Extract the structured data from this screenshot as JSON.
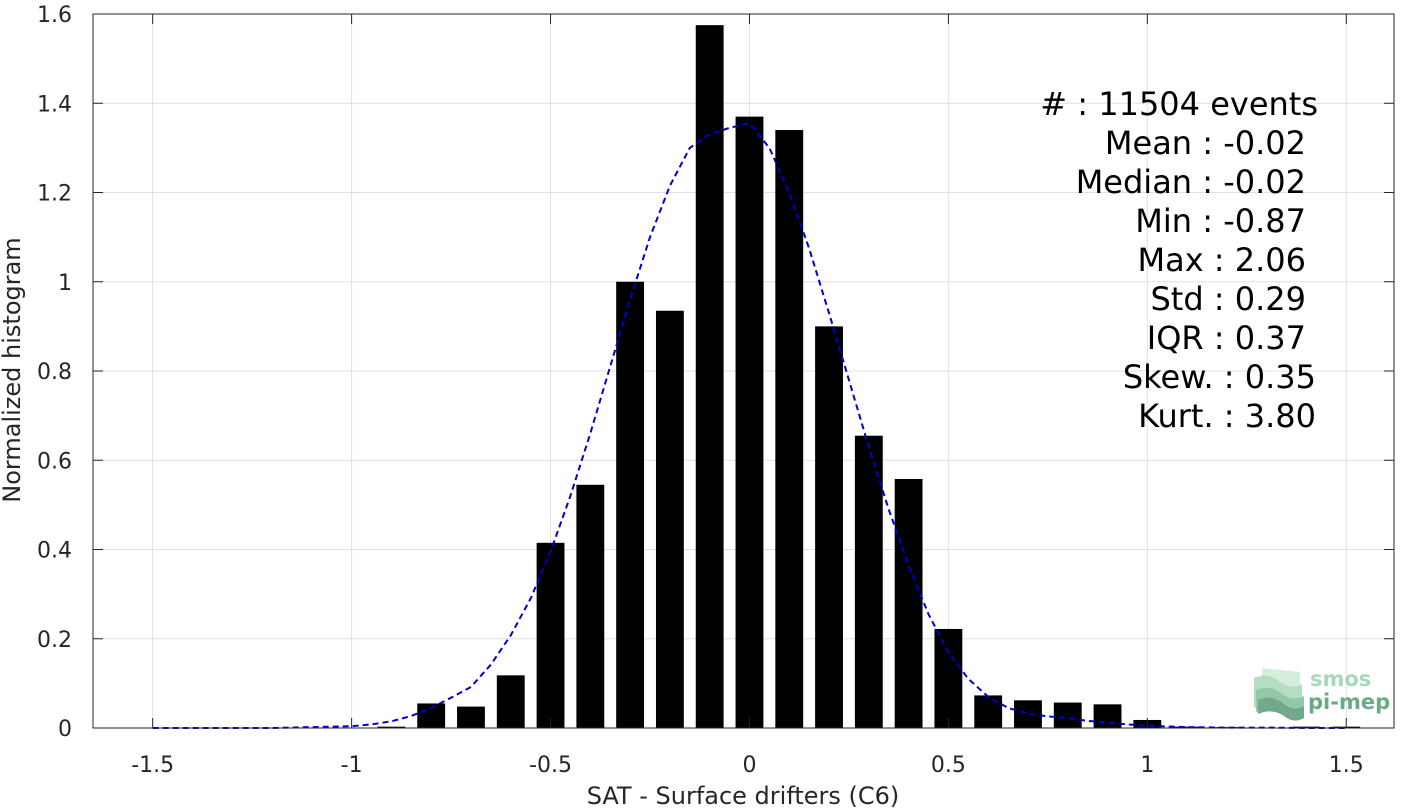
{
  "chart_data": {
    "type": "bar",
    "title": "",
    "xlabel": "SAT - Surface drifters (C6)",
    "ylabel": "Normalized histogram",
    "xlim": [
      -1.65,
      1.62
    ],
    "ylim": [
      0,
      1.6
    ],
    "grid": true,
    "x_ticks": [
      -1.5,
      -1,
      -0.5,
      0,
      0.5,
      1,
      1.5
    ],
    "x_tick_labels": [
      "-1.5",
      "-1",
      "-0.5",
      "0",
      "0.5",
      "1",
      "1.5"
    ],
    "y_ticks": [
      0,
      0.2,
      0.4,
      0.6,
      0.8,
      1,
      1.2,
      1.4,
      1.6
    ],
    "y_tick_labels": [
      "0",
      "0.2",
      "0.4",
      "0.6",
      "0.8",
      "1",
      "1.2",
      "1.4",
      "1.6"
    ],
    "bar_width": 0.07,
    "bar_color": "#000000",
    "bars": {
      "x": [
        -1.5,
        -1.4,
        -1.3,
        -1.2,
        -1.1,
        -1.0,
        -0.9,
        -0.8,
        -0.7,
        -0.6,
        -0.5,
        -0.4,
        -0.3,
        -0.2,
        -0.1,
        0.0,
        0.1,
        0.2,
        0.3,
        0.4,
        0.5,
        0.6,
        0.7,
        0.8,
        0.9,
        1.0,
        1.1,
        1.2,
        1.3,
        1.4,
        1.5
      ],
      "values": [
        0,
        0,
        0,
        0,
        0,
        0,
        0.003,
        0.055,
        0.048,
        0.118,
        0.415,
        0.545,
        1.0,
        0.935,
        1.575,
        1.37,
        1.34,
        0.9,
        0.655,
        0.558,
        0.222,
        0.073,
        0.062,
        0.057,
        0.053,
        0.018,
        0.003,
        0.002,
        0.001,
        0.003,
        0.003
      ]
    },
    "fit_curve": {
      "color": "#0000cc",
      "style": "dashed",
      "x": [
        -1.5,
        -1.4,
        -1.3,
        -1.2,
        -1.1,
        -1.0,
        -0.95,
        -0.9,
        -0.85,
        -0.8,
        -0.75,
        -0.7,
        -0.65,
        -0.6,
        -0.55,
        -0.5,
        -0.45,
        -0.4,
        -0.35,
        -0.3,
        -0.25,
        -0.2,
        -0.15,
        -0.1,
        -0.05,
        0.0,
        0.05,
        0.1,
        0.15,
        0.2,
        0.25,
        0.3,
        0.35,
        0.4,
        0.45,
        0.5,
        0.55,
        0.6,
        0.65,
        0.7,
        0.75,
        0.8,
        0.85,
        0.9,
        0.95,
        1.0,
        1.1,
        1.2,
        1.3,
        1.4,
        1.5
      ],
      "y": [
        0.0,
        0.0,
        0.0,
        0.0,
        0.002,
        0.004,
        0.008,
        0.015,
        0.027,
        0.045,
        0.068,
        0.092,
        0.142,
        0.208,
        0.29,
        0.395,
        0.52,
        0.66,
        0.81,
        0.96,
        1.1,
        1.215,
        1.3,
        1.33,
        1.345,
        1.355,
        1.3,
        1.2,
        1.075,
        0.93,
        0.78,
        0.63,
        0.49,
        0.365,
        0.255,
        0.17,
        0.11,
        0.07,
        0.045,
        0.032,
        0.026,
        0.022,
        0.016,
        0.012,
        0.008,
        0.005,
        0.002,
        0.001,
        0.001,
        0.0,
        0.0
      ]
    }
  },
  "stats": [
    {
      "label": "#  ",
      "value": "11504 events",
      "anchor_x": 1318
    },
    {
      "label": "Mean",
      "value": "-0.02",
      "anchor_x": 1306
    },
    {
      "label": "Median",
      "value": "-0.02",
      "anchor_x": 1306
    },
    {
      "label": "Min",
      "value": "-0.87",
      "anchor_x": 1306
    },
    {
      "label": "Max",
      "value": "2.06",
      "anchor_x": 1306
    },
    {
      "label": "Std",
      "value": "0.29",
      "anchor_x": 1306
    },
    {
      "label": "IQR",
      "value": "0.37",
      "anchor_x": 1306
    },
    {
      "label": "Skew.",
      "value": "0.35",
      "anchor_x": 1316
    },
    {
      "label": "Kurt.",
      "value": "3.80",
      "anchor_x": 1316
    }
  ],
  "logo": {
    "line1": "smos",
    "line2": "pi-mep",
    "color_light": "#a8d8b8",
    "color_dark": "#5a9a78"
  }
}
